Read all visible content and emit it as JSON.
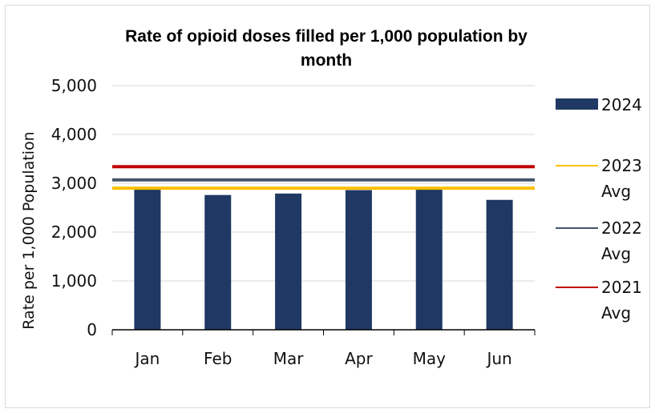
{
  "chart_data": {
    "type": "bar",
    "title_lines": [
      "Rate of opioid doses filled per 1,000 population by",
      "month"
    ],
    "ylabel": "Rate per 1,000 Population",
    "xlabel": "",
    "categories": [
      "Jan",
      "Feb",
      "Mar",
      "Apr",
      "May",
      "Jun"
    ],
    "ylim": [
      0,
      5000
    ],
    "yticks": [
      0,
      1000,
      2000,
      3000,
      4000,
      5000
    ],
    "ytick_labels": [
      "0",
      "1,000",
      "2,000",
      "3,000",
      "4,000",
      "5,000"
    ],
    "grid": true,
    "legend_position": "right",
    "series": [
      {
        "name": "2024",
        "kind": "bar",
        "color": "#1f3864",
        "values": [
          2870,
          2760,
          2790,
          2860,
          2920,
          2660
        ]
      }
    ],
    "reference_lines": [
      {
        "name_lines": [
          "2023",
          "Avg"
        ],
        "color": "#ffc000",
        "value": 2900
      },
      {
        "name_lines": [
          "2022",
          "Avg"
        ],
        "color": "#44546a",
        "value": 3070
      },
      {
        "name_lines": [
          "2021",
          "Avg"
        ],
        "color": "#c00000",
        "value": 3340
      }
    ]
  }
}
